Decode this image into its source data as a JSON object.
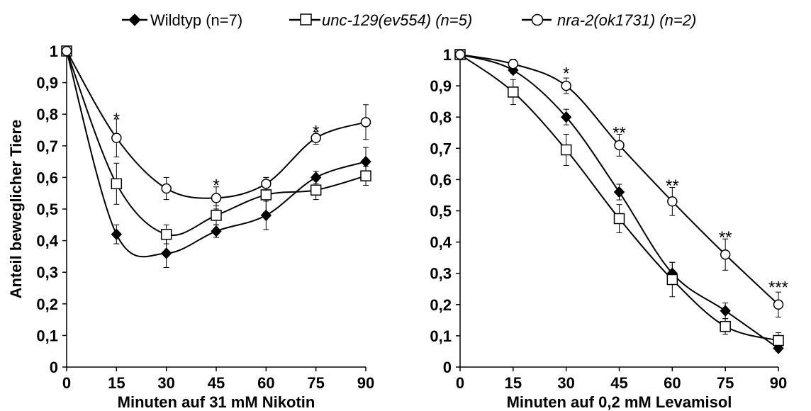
{
  "legend": [
    {
      "label": "Wildtyp (n=7)",
      "italic": false,
      "marker": "diamond"
    },
    {
      "label": "unc-129(ev554) (n=5)",
      "italic": true,
      "marker": "square"
    },
    {
      "label": "nra-2(ok1731) (n=2)",
      "italic": true,
      "marker": "circle"
    }
  ],
  "chart_data": [
    {
      "type": "line",
      "xlabel": "Minuten auf 31 mM Nikotin",
      "ylabel": "Anteil beweglicher Tiere",
      "x": [
        0,
        15,
        30,
        45,
        60,
        75,
        90
      ],
      "x_tick_labels": [
        "0",
        "15",
        "30",
        "45",
        "60",
        "75",
        "90"
      ],
      "y_tick_labels": [
        "0",
        "0,1",
        "0,2",
        "0,3",
        "0,4",
        "0,5",
        "0,6",
        "0,7",
        "0,8",
        "0,9",
        "1"
      ],
      "xlim": [
        0,
        90
      ],
      "ylim": [
        0,
        1
      ],
      "grid": false,
      "series": [
        {
          "name": "Wildtyp (n=7)",
          "marker": "diamond",
          "values": [
            1.0,
            0.42,
            0.36,
            0.43,
            0.48,
            0.6,
            0.65
          ],
          "errors": [
            0,
            0.03,
            0.045,
            0.02,
            0.045,
            0.02,
            0.045
          ]
        },
        {
          "name": "unc-129(ev554) (n=5)",
          "marker": "square",
          "values": [
            1.0,
            0.58,
            0.42,
            0.48,
            0.545,
            0.56,
            0.605
          ],
          "errors": [
            0,
            0.065,
            0.03,
            0.03,
            0.055,
            0.03,
            0.03
          ]
        },
        {
          "name": "nra-2(ok1731) (n=2)",
          "marker": "circle",
          "values": [
            1.0,
            0.725,
            0.565,
            0.535,
            0.58,
            0.725,
            0.775
          ],
          "errors": [
            0,
            0.06,
            0.035,
            0.035,
            0.02,
            0.02,
            0.055
          ]
        }
      ],
      "annotations": [
        {
          "x": 15,
          "y": 0.785,
          "text": "*"
        },
        {
          "x": 45,
          "y": 0.575,
          "text": "*"
        },
        {
          "x": 75,
          "y": 0.745,
          "text": "*"
        }
      ]
    },
    {
      "type": "line",
      "xlabel": "Minuten auf 0,2 mM Levamisol",
      "ylabel": "",
      "x": [
        0,
        15,
        30,
        45,
        60,
        75,
        90
      ],
      "x_tick_labels": [
        "0",
        "15",
        "30",
        "45",
        "60",
        "75",
        "90"
      ],
      "y_tick_labels": [
        "0",
        "0,1",
        "0,2",
        "0,3",
        "0,4",
        "0,5",
        "0,6",
        "0,7",
        "0,8",
        "0,9",
        "1"
      ],
      "xlim": [
        0,
        90
      ],
      "ylim": [
        0,
        1
      ],
      "grid": false,
      "series": [
        {
          "name": "Wildtyp (n=7)",
          "marker": "diamond",
          "values": [
            1.0,
            0.95,
            0.8,
            0.56,
            0.3,
            0.18,
            0.06
          ],
          "errors": [
            0,
            0.01,
            0.025,
            0.025,
            0.035,
            0.025,
            0.01
          ]
        },
        {
          "name": "unc-129(ev554) (n=5)",
          "marker": "square",
          "values": [
            1.0,
            0.88,
            0.695,
            0.475,
            0.28,
            0.13,
            0.085
          ],
          "errors": [
            0,
            0.04,
            0.05,
            0.045,
            0.055,
            0.025,
            0.025
          ]
        },
        {
          "name": "nra-2(ok1731) (n=2)",
          "marker": "circle",
          "values": [
            1.0,
            0.97,
            0.9,
            0.71,
            0.53,
            0.36,
            0.2
          ],
          "errors": [
            0,
            0.015,
            0.025,
            0.035,
            0.045,
            0.05,
            0.04
          ]
        }
      ],
      "annotations": [
        {
          "x": 30,
          "y": 0.94,
          "text": "*"
        },
        {
          "x": 45,
          "y": 0.75,
          "text": "**"
        },
        {
          "x": 60,
          "y": 0.58,
          "text": "**"
        },
        {
          "x": 75,
          "y": 0.415,
          "text": "**"
        },
        {
          "x": 90,
          "y": 0.255,
          "text": "***"
        }
      ]
    }
  ]
}
